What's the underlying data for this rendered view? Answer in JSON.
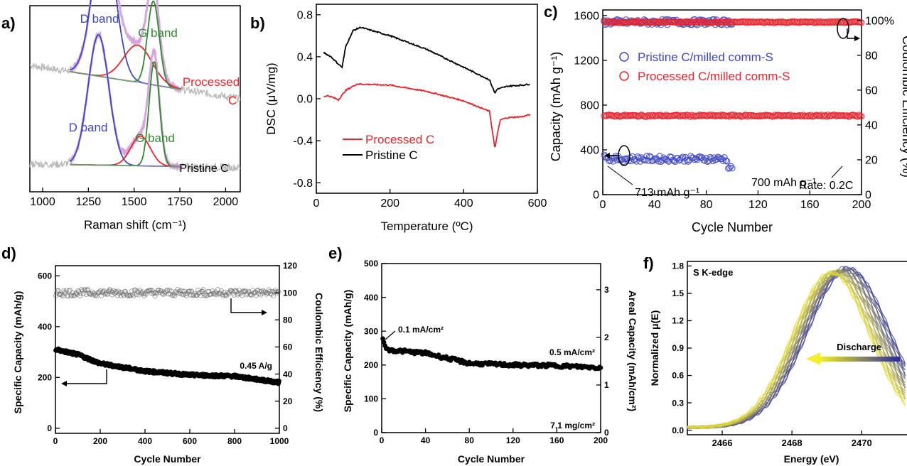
{
  "chart_data": [
    {
      "panel": "a)",
      "type": "line",
      "xlabel": "Raman shift (cm⁻¹)",
      "ylabel": "",
      "xlim": [
        930,
        2080
      ],
      "xticks": [
        "1000",
        "1250",
        "1500",
        "1750",
        "2000"
      ],
      "xtick_values": [
        1000,
        1250,
        1500,
        1750,
        2000
      ],
      "annotations": [
        "D band",
        "G band",
        "Processed",
        "C",
        "D band",
        "G band",
        "Pristine C"
      ],
      "spectra": [
        {
          "name": "Processed C",
          "baseline": [
            0.68,
            0.5
          ],
          "peaks": [
            {
              "label": "D band",
              "center": 1335,
              "width": 88,
              "height": 0.78
            },
            {
              "label": "",
              "center": 1520,
              "width": 110,
              "height": 0.2
            },
            {
              "label": "G band",
              "center": 1605,
              "width": 45,
              "height": 0.45
            }
          ]
        },
        {
          "name": "Pristine C",
          "baseline": [
            0.15,
            0.13
          ],
          "peaks": [
            {
              "label": "D band",
              "center": 1305,
              "width": 80,
              "height": 0.7
            },
            {
              "label": "",
              "center": 1535,
              "width": 75,
              "height": 0.16
            },
            {
              "label": "G band",
              "center": 1610,
              "width": 40,
              "height": 0.56
            }
          ]
        }
      ]
    },
    {
      "panel": "b)",
      "type": "line",
      "xlabel": "Temperature (ºC)",
      "ylabel": "DSC (μV/mg)",
      "xlim": [
        0,
        600
      ],
      "ylim": [
        -0.9,
        0.9
      ],
      "xticks": [
        "0",
        "200",
        "400",
        "600"
      ],
      "xtick_values": [
        0,
        200,
        400,
        600
      ],
      "yticks": [
        "-0.8",
        "-0.4",
        "0.0",
        "0.4",
        "0.8"
      ],
      "ytick_values": [
        -0.8,
        -0.4,
        0.0,
        0.4,
        0.8
      ],
      "legend_position": "lower-left",
      "series": [
        {
          "name": "Processed C",
          "color": "#e8252d",
          "x": [
            20,
            30,
            40,
            60,
            80,
            110,
            200,
            300,
            400,
            470,
            485,
            492,
            500,
            520,
            560,
            580
          ],
          "y": [
            0.02,
            0.03,
            0.02,
            -0.01,
            0.08,
            0.14,
            0.13,
            0.07,
            -0.02,
            -0.12,
            -0.48,
            -0.32,
            -0.2,
            -0.18,
            -0.17,
            -0.15
          ]
        },
        {
          "name": "Pristine C",
          "color": "#000000",
          "x": [
            20,
            40,
            60,
            70,
            80,
            100,
            120,
            200,
            300,
            400,
            470,
            485,
            490,
            500,
            520,
            560,
            580
          ],
          "y": [
            0.44,
            0.4,
            0.33,
            0.3,
            0.5,
            0.65,
            0.68,
            0.6,
            0.47,
            0.3,
            0.18,
            0.05,
            0.09,
            0.1,
            0.12,
            0.13,
            0.14
          ]
        }
      ]
    },
    {
      "panel": "c)",
      "type": "scatter",
      "xlabel": "Cycle Number",
      "ylabel": "Capacity (mAh g⁻¹)",
      "y2label": "Coulombic Efficiency (%)",
      "xlim": [
        0,
        200
      ],
      "ylim": [
        0,
        1650
      ],
      "y2lim": [
        0,
        106
      ],
      "xticks": [
        "0",
        "40",
        "80",
        "120",
        "160",
        "200"
      ],
      "xtick_values": [
        0,
        40,
        80,
        120,
        160,
        200
      ],
      "yticks": [
        "0",
        "400",
        "800",
        "1200",
        "1600"
      ],
      "ytick_values": [
        0,
        400,
        800,
        1200,
        1600
      ],
      "y2ticks": [
        "0",
        "20",
        "40",
        "60",
        "80",
        "100%"
      ],
      "y2tick_values": [
        0,
        20,
        40,
        60,
        80,
        100
      ],
      "legend": [
        "Pristine C/milled comm-S",
        "Processed C/milled comm-S"
      ],
      "annotations": [
        "713 mAh g⁻¹",
        "700 mAh g⁻¹",
        "Rate: 0.2C"
      ],
      "series": [
        {
          "name": "Pristine C/milled comm-S capacity",
          "axis": "left",
          "color": "#3d47c5",
          "x": [
            1,
            100
          ],
          "y": [
            370,
            230
          ],
          "base": 320
        },
        {
          "name": "Pristine C/milled comm-S CE",
          "axis": "right",
          "color": "#3d47c5",
          "x": [
            1,
            100
          ],
          "y": [
            97,
            99
          ],
          "base": 99
        },
        {
          "name": "Processed C/milled comm-S capacity",
          "axis": "left",
          "color": "#e8252d",
          "x": [
            1,
            200
          ],
          "y": [
            713,
            700
          ],
          "base": 705
        },
        {
          "name": "Processed C/milled comm-S CE",
          "axis": "right",
          "color": "#e8252d",
          "x": [
            1,
            200
          ],
          "y": [
            99,
            99
          ],
          "base": 99
        }
      ]
    },
    {
      "panel": "d)",
      "type": "scatter",
      "xlabel": "Cycle Number",
      "ylabel": "Specific Capacity (mAh/g)",
      "y2label": "Coulombic Efficiency (%)",
      "xlim": [
        0,
        1000
      ],
      "ylim": [
        -20,
        640
      ],
      "y2lim": [
        -3.75,
        120
      ],
      "xticks": [
        "0",
        "200",
        "400",
        "600",
        "800",
        "1000"
      ],
      "xtick_values": [
        0,
        200,
        400,
        600,
        800,
        1000
      ],
      "yticks": [
        "0",
        "200",
        "400",
        "600"
      ],
      "ytick_values": [
        0,
        200,
        400,
        600
      ],
      "y2ticks": [
        "0",
        "20",
        "40",
        "60",
        "80",
        "100",
        "120"
      ],
      "y2tick_values": [
        0,
        20,
        40,
        60,
        80,
        100,
        120
      ],
      "annotations": [
        "0.45 A/g"
      ],
      "series": [
        {
          "name": "Specific capacity",
          "axis": "left",
          "color": "#000000",
          "x": [
            1,
            100,
            200,
            400,
            600,
            800,
            1000
          ],
          "y": [
            310,
            290,
            255,
            225,
            210,
            205,
            180
          ]
        },
        {
          "name": "Coulombic efficiency",
          "axis": "right",
          "color": "#555555",
          "x": [
            1,
            1000
          ],
          "y": [
            100,
            100
          ]
        }
      ]
    },
    {
      "panel": "e)",
      "type": "scatter",
      "xlabel": "Cycle Number",
      "ylabel": "Specific Capacity (mAh/g)",
      "y2label": "Areal Capacity (mAh/cm²)",
      "xlim": [
        0,
        200
      ],
      "ylim": [
        0,
        500
      ],
      "y2lim": [
        0,
        3.55
      ],
      "xticks": [
        "0",
        "40",
        "80",
        "120",
        "160",
        "200"
      ],
      "xtick_values": [
        0,
        40,
        80,
        120,
        160,
        200
      ],
      "yticks": [
        "0",
        "100",
        "200",
        "300",
        "400",
        "500"
      ],
      "ytick_values": [
        0,
        100,
        200,
        300,
        400,
        500
      ],
      "y2ticks": [
        "0",
        "1",
        "2",
        "3"
      ],
      "y2tick_values": [
        0,
        1,
        2,
        3
      ],
      "annotations": [
        "0.1 mA/cm²",
        "0.5 mA/cm²",
        "7.1 mg/cm²"
      ],
      "series": [
        {
          "name": "Specific capacity",
          "axis": "left",
          "color": "#000000",
          "x": [
            1,
            5,
            40,
            80,
            120,
            160,
            200
          ],
          "y": [
            278,
            245,
            235,
            205,
            200,
            198,
            192
          ]
        }
      ]
    },
    {
      "panel": "f)",
      "type": "line",
      "title": "S K-edge",
      "xlabel": "Energy (eV)",
      "ylabel": "Normalized μ(E)",
      "xlim": [
        2465,
        2471.3
      ],
      "ylim": [
        -0.05,
        1.85
      ],
      "xticks": [
        "2466",
        "2468",
        "2470"
      ],
      "xtick_values": [
        2466,
        2468,
        2470
      ],
      "yticks": [
        "0.0",
        "0.3",
        "0.6",
        "0.9",
        "1.2",
        "1.5",
        "1.8"
      ],
      "ytick_values": [
        0,
        0.3,
        0.6,
        0.9,
        1.2,
        1.5,
        1.8
      ],
      "annotations": [
        "Discharge"
      ],
      "series_count": 24,
      "colors": [
        "#e8e030",
        "#3a3ca0"
      ]
    }
  ]
}
